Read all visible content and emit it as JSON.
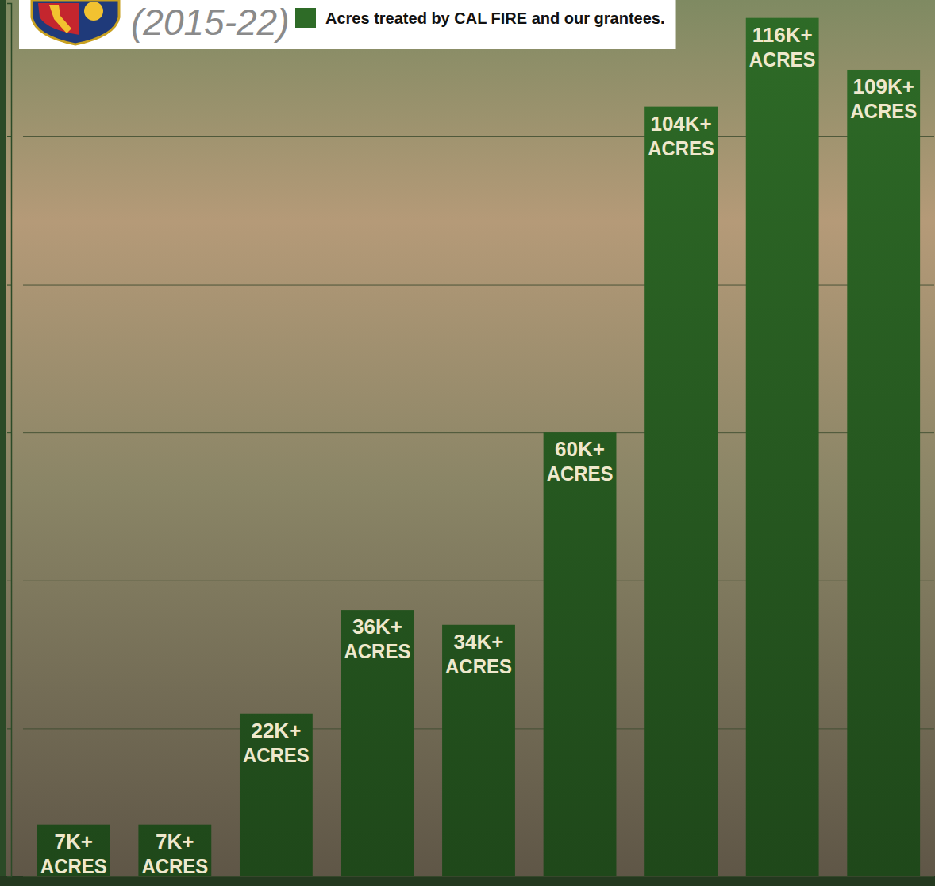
{
  "chart_data": {
    "type": "bar",
    "title": "(2015-22)",
    "categories": [
      null,
      null,
      null,
      null,
      null,
      null,
      null,
      null,
      null
    ],
    "series": [
      {
        "name": "Acres treated by CAL FIRE and our grantees.",
        "color": "#2e6b27",
        "values": [
          7000,
          7000,
          22000,
          36000,
          34000,
          60000,
          104000,
          116000,
          109000
        ],
        "value_labels": [
          "7K+ ACRES",
          "7K+ ACRES",
          "22K+ ACRES",
          "36K+ ACRES",
          "34K+ ACRES",
          "60K+ ACRES",
          "104K+ ACRES",
          "116K+ ACRES",
          "109K+ ACRES"
        ]
      }
    ],
    "ylim": [
      0,
      118000
    ],
    "yticks": [
      0,
      20000,
      40000,
      60000,
      80000,
      100000
    ],
    "grid": true,
    "legend": "top-left",
    "data_labels": true,
    "tick_labels": false
  }
}
